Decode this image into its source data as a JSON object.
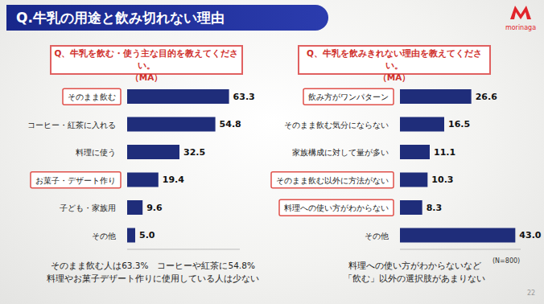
{
  "header": {
    "title": "Q.牛乳の用途と飲み切れない理由",
    "logo": "morinaga"
  },
  "note": "(N=800)",
  "page": 22,
  "chart_data": [
    {
      "type": "bar",
      "orientation": "horizontal",
      "title": "Q、牛乳を飲む・使う主な目的を教えてください。",
      "subtitle": "（MA）",
      "categories": [
        "そのまま飲む",
        "コーヒー・紅茶に入れる",
        "料理に使う",
        "お菓子・デザート作り",
        "子ども・家族用",
        "その他"
      ],
      "values": [
        63.3,
        54.8,
        32.5,
        19.4,
        9.6,
        5.0
      ],
      "value_labels": [
        "63.3",
        "54.8",
        "32.5",
        "19.4",
        "9.6",
        "5.0"
      ],
      "color": "#1f2d7a",
      "xlim": [
        0,
        70
      ],
      "grid": false,
      "data_labels": true,
      "tick_labels": "y",
      "annotations": [
        "そのまま飲む人は63.3%　コーヒーや紅茶に54.8%",
        "料理やお菓子デザート作りに使用している人は少ない"
      ]
    },
    {
      "type": "bar",
      "orientation": "horizontal",
      "title": "Q、牛乳を飲みきれない理由を教えてください。",
      "subtitle": "（MA）",
      "categories": [
        "飲み方がワンパターン",
        "そのまま飲む気分にならない",
        "家族構成に対して量が多い",
        "そのまま飲む以外に方法がない",
        "料理への使い方がわからない",
        "その他"
      ],
      "values": [
        26.6,
        16.5,
        11.1,
        10.3,
        8.3,
        43.0
      ],
      "value_labels": [
        "26.6",
        "16.5",
        "11.1",
        "10.3",
        "8.3",
        "43.0"
      ],
      "color": "#1f2d7a",
      "xlim": [
        0,
        45
      ],
      "grid": false,
      "data_labels": true,
      "tick_labels": "y",
      "annotations": [
        "料理への使い方がわからないなど",
        "「飲む」以外の選択肢があまりない"
      ]
    }
  ]
}
